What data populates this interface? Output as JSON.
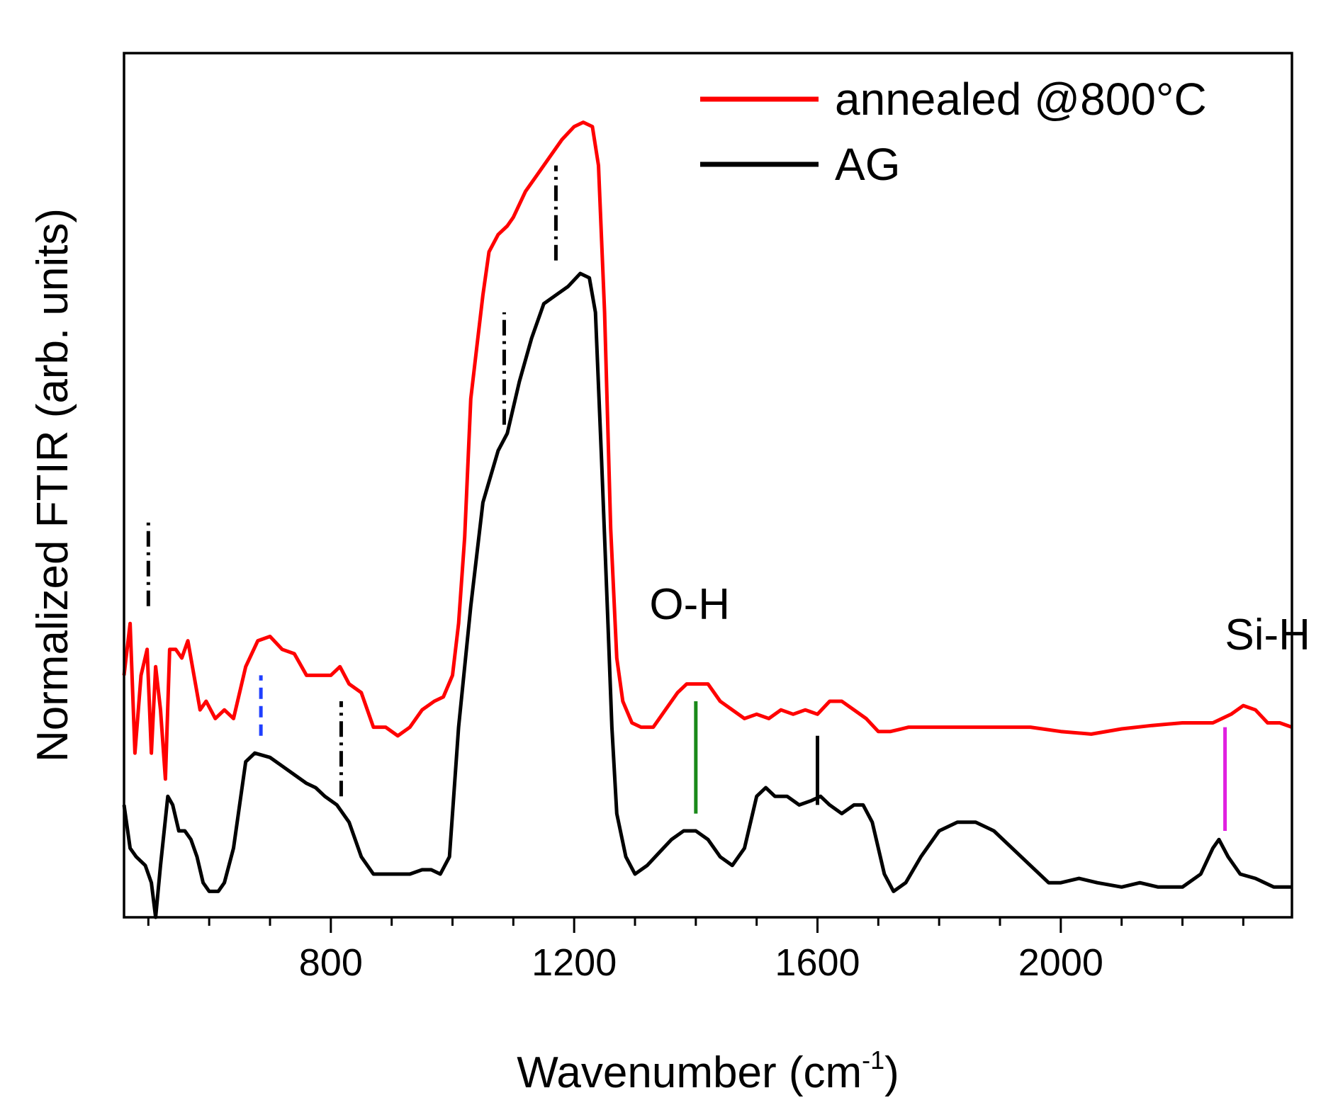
{
  "chart_data": {
    "type": "line",
    "title": "",
    "xlabel": "Wavenumber (cm",
    "xlabel_superscript": "-1",
    "xlabel_suffix": ")",
    "ylabel": "Normalized FTIR (arb. units)",
    "xlim": [
      460,
      2380
    ],
    "ylim": [
      0,
      1
    ],
    "y_ticks_shown": false,
    "x_ticks": [
      800,
      1200,
      1600,
      2000
    ],
    "x_tick_labels": [
      "800",
      "1200",
      "1600",
      "2000"
    ],
    "legend_position": "top-right",
    "series": [
      {
        "name": "annealed @800°C",
        "color": "#ff0000",
        "points": [
          [
            460,
            0.28
          ],
          [
            470,
            0.34
          ],
          [
            478,
            0.19
          ],
          [
            488,
            0.28
          ],
          [
            498,
            0.31
          ],
          [
            505,
            0.19
          ],
          [
            512,
            0.29
          ],
          [
            520,
            0.24
          ],
          [
            528,
            0.16
          ],
          [
            535,
            0.31
          ],
          [
            545,
            0.31
          ],
          [
            555,
            0.3
          ],
          [
            565,
            0.32
          ],
          [
            575,
            0.28
          ],
          [
            585,
            0.24
          ],
          [
            595,
            0.25
          ],
          [
            610,
            0.23
          ],
          [
            625,
            0.24
          ],
          [
            640,
            0.23
          ],
          [
            660,
            0.29
          ],
          [
            680,
            0.32
          ],
          [
            700,
            0.325
          ],
          [
            720,
            0.31
          ],
          [
            740,
            0.305
          ],
          [
            760,
            0.28
          ],
          [
            780,
            0.28
          ],
          [
            800,
            0.28
          ],
          [
            815,
            0.29
          ],
          [
            830,
            0.27
          ],
          [
            850,
            0.26
          ],
          [
            870,
            0.22
          ],
          [
            890,
            0.22
          ],
          [
            910,
            0.21
          ],
          [
            930,
            0.22
          ],
          [
            950,
            0.24
          ],
          [
            970,
            0.25
          ],
          [
            985,
            0.255
          ],
          [
            1000,
            0.28
          ],
          [
            1010,
            0.34
          ],
          [
            1020,
            0.44
          ],
          [
            1030,
            0.6
          ],
          [
            1040,
            0.66
          ],
          [
            1050,
            0.72
          ],
          [
            1060,
            0.77
          ],
          [
            1075,
            0.79
          ],
          [
            1090,
            0.8
          ],
          [
            1100,
            0.81
          ],
          [
            1120,
            0.84
          ],
          [
            1140,
            0.86
          ],
          [
            1160,
            0.88
          ],
          [
            1180,
            0.9
          ],
          [
            1200,
            0.915
          ],
          [
            1215,
            0.92
          ],
          [
            1230,
            0.915
          ],
          [
            1240,
            0.87
          ],
          [
            1250,
            0.7
          ],
          [
            1260,
            0.45
          ],
          [
            1270,
            0.3
          ],
          [
            1280,
            0.25
          ],
          [
            1295,
            0.225
          ],
          [
            1310,
            0.22
          ],
          [
            1330,
            0.22
          ],
          [
            1350,
            0.24
          ],
          [
            1370,
            0.26
          ],
          [
            1385,
            0.27
          ],
          [
            1400,
            0.27
          ],
          [
            1420,
            0.27
          ],
          [
            1440,
            0.25
          ],
          [
            1460,
            0.24
          ],
          [
            1480,
            0.23
          ],
          [
            1500,
            0.235
          ],
          [
            1520,
            0.23
          ],
          [
            1540,
            0.24
          ],
          [
            1560,
            0.235
          ],
          [
            1580,
            0.24
          ],
          [
            1600,
            0.235
          ],
          [
            1620,
            0.25
          ],
          [
            1640,
            0.25
          ],
          [
            1660,
            0.24
          ],
          [
            1680,
            0.23
          ],
          [
            1700,
            0.215
          ],
          [
            1720,
            0.215
          ],
          [
            1750,
            0.22
          ],
          [
            1800,
            0.22
          ],
          [
            1850,
            0.22
          ],
          [
            1900,
            0.22
          ],
          [
            1950,
            0.22
          ],
          [
            2000,
            0.215
          ],
          [
            2050,
            0.212
          ],
          [
            2100,
            0.218
          ],
          [
            2150,
            0.222
          ],
          [
            2200,
            0.225
          ],
          [
            2250,
            0.225
          ],
          [
            2280,
            0.235
          ],
          [
            2300,
            0.245
          ],
          [
            2320,
            0.24
          ],
          [
            2340,
            0.225
          ],
          [
            2360,
            0.225
          ],
          [
            2380,
            0.22
          ]
        ]
      },
      {
        "name": "AG",
        "color": "#000000",
        "points": [
          [
            460,
            0.13
          ],
          [
            470,
            0.08
          ],
          [
            480,
            0.07
          ],
          [
            495,
            0.06
          ],
          [
            505,
            0.04
          ],
          [
            512,
            0.0
          ],
          [
            520,
            0.06
          ],
          [
            532,
            0.14
          ],
          [
            540,
            0.13
          ],
          [
            550,
            0.1
          ],
          [
            560,
            0.1
          ],
          [
            570,
            0.09
          ],
          [
            580,
            0.07
          ],
          [
            590,
            0.04
          ],
          [
            600,
            0.03
          ],
          [
            615,
            0.03
          ],
          [
            625,
            0.04
          ],
          [
            640,
            0.08
          ],
          [
            660,
            0.18
          ],
          [
            675,
            0.19
          ],
          [
            700,
            0.185
          ],
          [
            720,
            0.175
          ],
          [
            740,
            0.165
          ],
          [
            760,
            0.155
          ],
          [
            775,
            0.15
          ],
          [
            790,
            0.14
          ],
          [
            810,
            0.13
          ],
          [
            830,
            0.11
          ],
          [
            850,
            0.07
          ],
          [
            870,
            0.05
          ],
          [
            890,
            0.05
          ],
          [
            910,
            0.05
          ],
          [
            930,
            0.05
          ],
          [
            950,
            0.055
          ],
          [
            965,
            0.055
          ],
          [
            980,
            0.05
          ],
          [
            995,
            0.07
          ],
          [
            1010,
            0.22
          ],
          [
            1030,
            0.36
          ],
          [
            1050,
            0.48
          ],
          [
            1075,
            0.54
          ],
          [
            1090,
            0.56
          ],
          [
            1110,
            0.62
          ],
          [
            1130,
            0.67
          ],
          [
            1150,
            0.71
          ],
          [
            1170,
            0.72
          ],
          [
            1190,
            0.73
          ],
          [
            1210,
            0.745
          ],
          [
            1225,
            0.74
          ],
          [
            1235,
            0.7
          ],
          [
            1245,
            0.53
          ],
          [
            1255,
            0.35
          ],
          [
            1262,
            0.22
          ],
          [
            1270,
            0.12
          ],
          [
            1285,
            0.07
          ],
          [
            1300,
            0.05
          ],
          [
            1320,
            0.06
          ],
          [
            1340,
            0.075
          ],
          [
            1360,
            0.09
          ],
          [
            1380,
            0.1
          ],
          [
            1400,
            0.1
          ],
          [
            1420,
            0.09
          ],
          [
            1440,
            0.07
          ],
          [
            1460,
            0.06
          ],
          [
            1480,
            0.08
          ],
          [
            1500,
            0.14
          ],
          [
            1515,
            0.15
          ],
          [
            1530,
            0.14
          ],
          [
            1550,
            0.14
          ],
          [
            1570,
            0.13
          ],
          [
            1590,
            0.135
          ],
          [
            1605,
            0.14
          ],
          [
            1620,
            0.13
          ],
          [
            1640,
            0.12
          ],
          [
            1660,
            0.13
          ],
          [
            1675,
            0.13
          ],
          [
            1690,
            0.11
          ],
          [
            1710,
            0.05
          ],
          [
            1725,
            0.03
          ],
          [
            1745,
            0.04
          ],
          [
            1770,
            0.07
          ],
          [
            1800,
            0.1
          ],
          [
            1830,
            0.11
          ],
          [
            1860,
            0.11
          ],
          [
            1890,
            0.1
          ],
          [
            1920,
            0.08
          ],
          [
            1950,
            0.06
          ],
          [
            1980,
            0.04
          ],
          [
            2000,
            0.04
          ],
          [
            2030,
            0.045
          ],
          [
            2060,
            0.04
          ],
          [
            2100,
            0.035
          ],
          [
            2130,
            0.04
          ],
          [
            2160,
            0.035
          ],
          [
            2200,
            0.035
          ],
          [
            2230,
            0.05
          ],
          [
            2250,
            0.08
          ],
          [
            2260,
            0.09
          ],
          [
            2275,
            0.07
          ],
          [
            2295,
            0.05
          ],
          [
            2320,
            0.045
          ],
          [
            2350,
            0.035
          ],
          [
            2380,
            0.035
          ]
        ]
      }
    ],
    "peak_markers": [
      {
        "x": 500,
        "color": "#000000",
        "style": "dash-dot",
        "y_from": 0.36,
        "y_to": 0.46
      },
      {
        "x": 685,
        "color": "#1f3fff",
        "style": "dashed",
        "y_from": 0.21,
        "y_to": 0.28
      },
      {
        "x": 817,
        "color": "#000000",
        "style": "dash-dot",
        "y_from": 0.14,
        "y_to": 0.25
      },
      {
        "x": 1085,
        "color": "#000000",
        "style": "dash-dot",
        "y_from": 0.57,
        "y_to": 0.7
      },
      {
        "x": 1170,
        "color": "#000000",
        "style": "dash-dot",
        "y_from": 0.76,
        "y_to": 0.87
      },
      {
        "x": 1400,
        "color": "#1a8a1a",
        "style": "solid",
        "y_from": 0.12,
        "y_to": 0.25
      },
      {
        "x": 1600,
        "color": "#000000",
        "style": "solid",
        "y_from": 0.13,
        "y_to": 0.21
      },
      {
        "x": 2270,
        "color": "#e020e0",
        "style": "solid",
        "y_from": 0.1,
        "y_to": 0.22
      }
    ],
    "annotations": [
      {
        "text": "O-H",
        "x": 1390,
        "y": 0.345
      },
      {
        "text": "Si-H",
        "x": 2340,
        "y": 0.31
      }
    ]
  }
}
